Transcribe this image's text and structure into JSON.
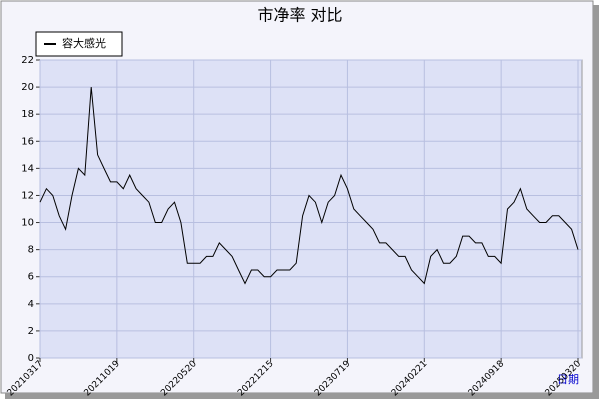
{
  "chart_data": {
    "type": "line",
    "title": "市净率  对比",
    "xlabel": "日期",
    "categories": [
      "20210317",
      null,
      null,
      null,
      null,
      null,
      null,
      null,
      null,
      null,
      null,
      null,
      "20211019",
      null,
      null,
      null,
      null,
      null,
      null,
      null,
      null,
      null,
      null,
      null,
      "20220520",
      null,
      null,
      null,
      null,
      null,
      null,
      null,
      null,
      null,
      null,
      null,
      "20221215",
      null,
      null,
      null,
      null,
      null,
      null,
      null,
      null,
      null,
      null,
      null,
      "20230719",
      null,
      null,
      null,
      null,
      null,
      null,
      null,
      null,
      null,
      null,
      null,
      "20240221",
      null,
      null,
      null,
      null,
      null,
      null,
      null,
      null,
      null,
      null,
      null,
      "20240918",
      null,
      null,
      null,
      null,
      null,
      null,
      null,
      null,
      null,
      null,
      null,
      "20250320"
    ],
    "series": [
      {
        "name": "容大感光",
        "color": "#000000",
        "values": [
          11.5,
          12.5,
          12.0,
          10.5,
          9.5,
          12.0,
          14.0,
          13.5,
          20.0,
          15.0,
          14.0,
          13.0,
          13.0,
          12.5,
          13.5,
          12.5,
          12.0,
          11.5,
          10.0,
          10.0,
          11.0,
          11.5,
          10.0,
          7.0,
          7.0,
          7.0,
          7.5,
          7.5,
          8.5,
          8.0,
          7.5,
          6.5,
          5.5,
          6.5,
          6.5,
          6.0,
          6.0,
          6.5,
          6.5,
          6.5,
          7.0,
          10.5,
          12.0,
          11.5,
          10.0,
          11.5,
          12.0,
          13.5,
          12.5,
          11.0,
          10.5,
          10.0,
          9.5,
          8.5,
          8.5,
          8.0,
          7.5,
          7.5,
          6.5,
          6.0,
          5.5,
          7.5,
          8.0,
          7.0,
          7.0,
          7.5,
          9.0,
          9.0,
          8.5,
          8.5,
          7.5,
          7.5,
          7.0,
          11.0,
          11.5,
          12.5,
          11.0,
          10.5,
          10.0,
          10.0,
          10.5,
          10.5,
          10.0,
          9.5,
          8.0
        ]
      }
    ],
    "ylim": [
      0,
      22
    ],
    "yticks": [
      0,
      2,
      4,
      6,
      8,
      10,
      12,
      14,
      16,
      18,
      20,
      22
    ],
    "grid": true,
    "legend": "top-left"
  }
}
